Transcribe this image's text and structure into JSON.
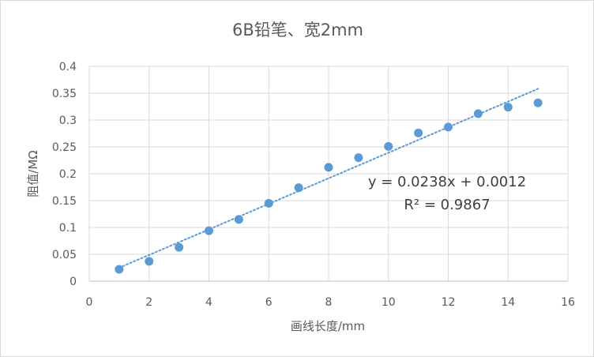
{
  "chart_data": {
    "type": "scatter",
    "title": "6B铅笔、宽2mm",
    "xlabel": "画线长度/mm",
    "ylabel": "阻值/MΩ",
    "xlim": [
      0,
      16
    ],
    "ylim": [
      0,
      0.4
    ],
    "x_ticks": [
      0,
      2,
      4,
      6,
      8,
      10,
      12,
      14,
      16
    ],
    "y_ticks": [
      0,
      0.05,
      0.1,
      0.15,
      0.2,
      0.25,
      0.3,
      0.35,
      0.4
    ],
    "grid": true,
    "legend": "none",
    "marker_color": "#5b9bd5",
    "trendline_color": "#5b9bd5",
    "series": [
      {
        "x": [
          1,
          2,
          3,
          4,
          5,
          6,
          7,
          8,
          9,
          10,
          11,
          12,
          13,
          14,
          15
        ],
        "y": [
          0.022,
          0.037,
          0.063,
          0.094,
          0.115,
          0.145,
          0.174,
          0.212,
          0.23,
          0.251,
          0.276,
          0.287,
          0.312,
          0.324,
          0.332
        ]
      }
    ],
    "trendline": {
      "type": "linear",
      "slope": 0.0238,
      "intercept": 0.0012,
      "x_range": [
        1,
        15
      ],
      "style": "dotted",
      "equation_label": "y = 0.0238x + 0.0012",
      "r2_label": "R² = 0.9867"
    }
  }
}
